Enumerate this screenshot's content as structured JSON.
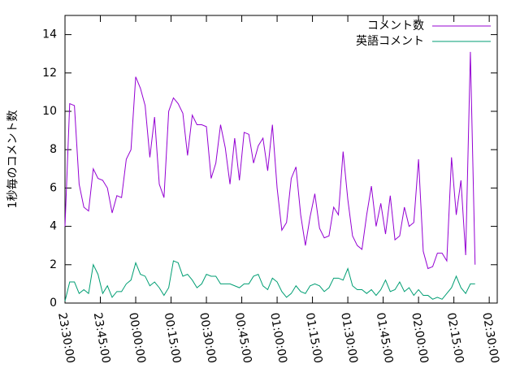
{
  "chart_data": {
    "type": "line",
    "ylabel": "1秒毎のコメント数",
    "x": [
      "23:30:00",
      "23:32:00",
      "23:34:00",
      "23:36:00",
      "23:38:00",
      "23:40:00",
      "23:42:00",
      "23:44:00",
      "23:46:00",
      "23:48:00",
      "23:50:00",
      "23:52:00",
      "23:54:00",
      "23:56:00",
      "23:58:00",
      "00:00:00",
      "00:02:00",
      "00:04:00",
      "00:06:00",
      "00:08:00",
      "00:10:00",
      "00:12:00",
      "00:14:00",
      "00:16:00",
      "00:18:00",
      "00:20:00",
      "00:22:00",
      "00:24:00",
      "00:26:00",
      "00:28:00",
      "00:30:00",
      "00:32:00",
      "00:34:00",
      "00:36:00",
      "00:38:00",
      "00:40:00",
      "00:42:00",
      "00:44:00",
      "00:46:00",
      "00:48:00",
      "00:50:00",
      "00:52:00",
      "00:54:00",
      "00:56:00",
      "00:58:00",
      "01:00:00",
      "01:02:00",
      "01:04:00",
      "01:06:00",
      "01:08:00",
      "01:10:00",
      "01:12:00",
      "01:14:00",
      "01:16:00",
      "01:18:00",
      "01:20:00",
      "01:22:00",
      "01:24:00",
      "01:26:00",
      "01:28:00",
      "01:30:00",
      "01:32:00",
      "01:34:00",
      "01:36:00",
      "01:38:00",
      "01:40:00",
      "01:42:00",
      "01:44:00",
      "01:46:00",
      "01:48:00",
      "01:50:00",
      "01:52:00",
      "01:54:00",
      "01:56:00",
      "01:58:00",
      "02:00:00",
      "02:02:00",
      "02:04:00",
      "02:06:00",
      "02:08:00",
      "02:10:00",
      "02:12:00",
      "02:14:00",
      "02:16:00",
      "02:18:00",
      "02:20:00",
      "02:22:00",
      "02:24:00"
    ],
    "series": [
      {
        "name": "コメント数",
        "color": "#9400d3",
        "values": [
          4.0,
          10.4,
          10.3,
          6.2,
          5.0,
          4.8,
          7.0,
          6.5,
          6.4,
          6.0,
          4.7,
          5.6,
          5.5,
          7.5,
          8.0,
          11.8,
          11.2,
          10.3,
          7.6,
          9.7,
          6.2,
          5.5,
          10.0,
          10.7,
          10.4,
          9.9,
          7.7,
          9.8,
          9.3,
          9.3,
          9.2,
          6.5,
          7.3,
          9.3,
          8.1,
          6.2,
          8.6,
          6.4,
          8.9,
          8.8,
          7.3,
          8.2,
          8.6,
          6.9,
          9.3,
          6.0,
          3.8,
          4.2,
          6.5,
          7.1,
          4.6,
          3.0,
          4.5,
          5.7,
          3.9,
          3.4,
          3.5,
          5.0,
          4.6,
          7.9,
          5.4,
          3.5,
          3.0,
          2.8,
          4.6,
          6.1,
          4.0,
          5.2,
          3.6,
          5.6,
          3.3,
          3.5,
          5.0,
          4.0,
          4.2,
          7.5,
          2.7,
          1.8,
          1.9,
          2.6,
          2.6,
          2.2,
          7.6,
          4.6,
          6.4,
          2.5,
          13.1,
          2.0
        ]
      },
      {
        "name": "英語コメント",
        "color": "#009e73",
        "values": [
          0.1,
          1.1,
          1.1,
          0.5,
          0.7,
          0.5,
          2.0,
          1.5,
          0.5,
          0.9,
          0.3,
          0.6,
          0.6,
          1.0,
          1.2,
          2.1,
          1.5,
          1.4,
          0.9,
          1.1,
          0.8,
          0.4,
          0.8,
          2.2,
          2.1,
          1.4,
          1.5,
          1.2,
          0.8,
          1.0,
          1.5,
          1.4,
          1.4,
          1.0,
          1.0,
          1.0,
          0.9,
          0.8,
          1.0,
          1.0,
          1.4,
          1.5,
          0.9,
          0.7,
          1.3,
          1.1,
          0.6,
          0.3,
          0.5,
          0.9,
          0.6,
          0.5,
          0.9,
          1.0,
          0.9,
          0.6,
          0.8,
          1.3,
          1.3,
          1.2,
          1.8,
          0.9,
          0.7,
          0.7,
          0.5,
          0.7,
          0.4,
          0.7,
          1.2,
          0.6,
          0.7,
          1.1,
          0.6,
          0.8,
          0.4,
          0.7,
          0.4,
          0.4,
          0.2,
          0.3,
          0.2,
          0.5,
          0.8,
          1.4,
          0.8,
          0.5,
          1.0,
          1.0
        ]
      }
    ],
    "xlim": [
      "23:30:00",
      "02:33:24"
    ],
    "xticks": [
      "23:30:00",
      "23:45:00",
      "00:00:00",
      "00:15:00",
      "00:30:00",
      "00:45:00",
      "01:00:00",
      "01:15:00",
      "01:30:00",
      "01:45:00",
      "02:00:00",
      "02:15:00",
      "02:30:00"
    ],
    "ylim": [
      0,
      15
    ],
    "yticks": [
      0,
      2,
      4,
      6,
      8,
      10,
      12,
      14
    ],
    "legend": "top-right"
  }
}
